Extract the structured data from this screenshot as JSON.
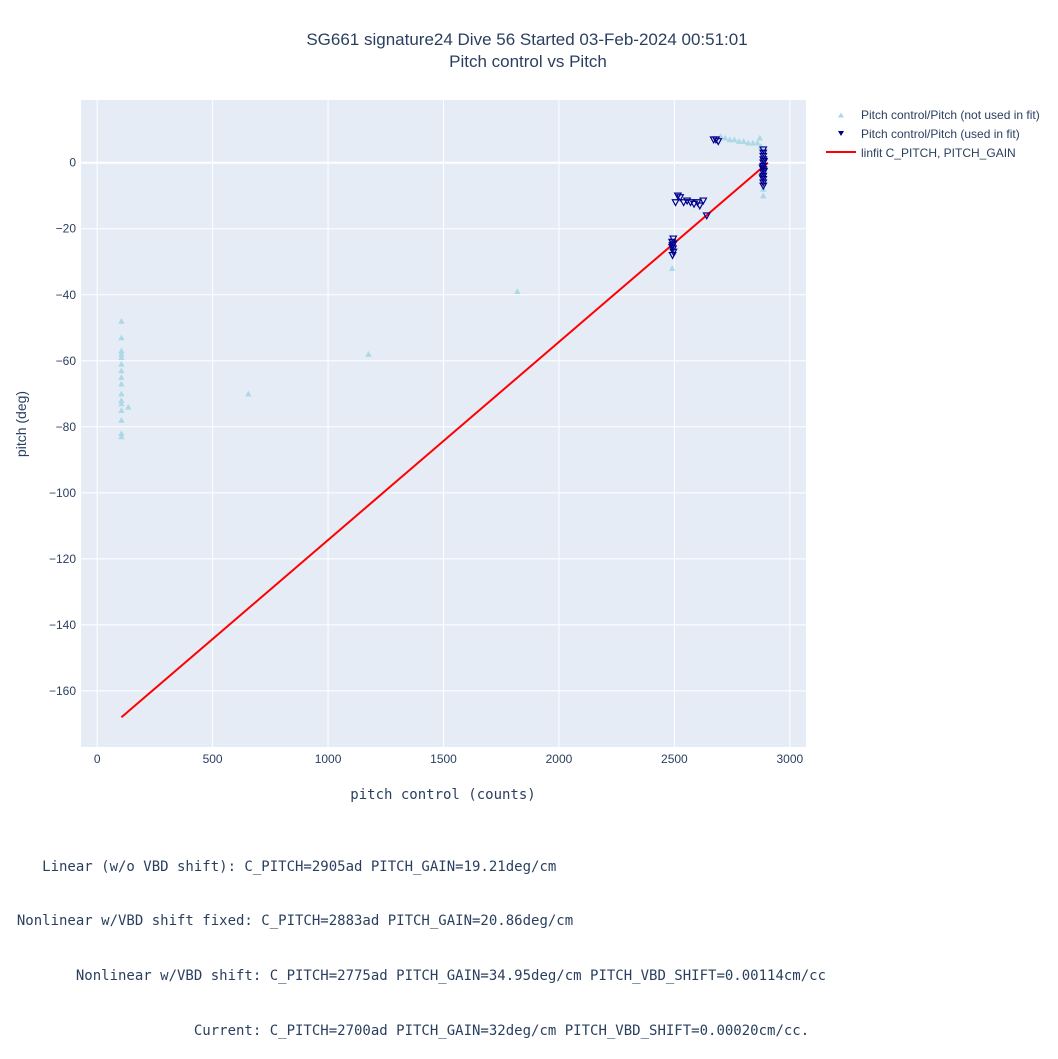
{
  "chart_data": {
    "type": "scatter",
    "title": "SG661 signature24 Dive 56 Started 03-Feb-2024 00:51:01",
    "subtitle": "Pitch control vs Pitch",
    "xlabel": "pitch control (counts)",
    "ylabel": "pitch (deg)",
    "xlim": [
      -70,
      3070
    ],
    "ylim": [
      -177,
      19
    ],
    "x_ticks": [
      0,
      500,
      1000,
      1500,
      2000,
      2500,
      3000
    ],
    "x_tick_labels": [
      "0",
      "500",
      "1000",
      "1500",
      "2000",
      "2500",
      "3000"
    ],
    "y_ticks": [
      0,
      -20,
      -40,
      -60,
      -80,
      -100,
      -120,
      -140,
      -160
    ],
    "y_tick_labels": [
      "0",
      "−20",
      "−40",
      "−60",
      "−80",
      "−100",
      "−120",
      "−140",
      "−160"
    ],
    "grid": true,
    "legend_position": "top-right outside",
    "series": [
      {
        "name": "Pitch control/Pitch (not used in fit)",
        "marker": "triangle-up",
        "color": "#add8e6",
        "points": [
          [
            105,
            -48
          ],
          [
            105,
            -53
          ],
          [
            105,
            -57
          ],
          [
            105,
            -58
          ],
          [
            105,
            -59
          ],
          [
            105,
            -61
          ],
          [
            105,
            -63
          ],
          [
            105,
            -65
          ],
          [
            105,
            -67
          ],
          [
            105,
            -70
          ],
          [
            105,
            -72
          ],
          [
            105,
            -73
          ],
          [
            105,
            -75
          ],
          [
            105,
            -78
          ],
          [
            105,
            -82
          ],
          [
            105,
            -83
          ],
          [
            135,
            -74
          ],
          [
            655,
            -70
          ],
          [
            1175,
            -58
          ],
          [
            1820,
            -39
          ],
          [
            2490,
            -32
          ],
          [
            2490,
            -24
          ],
          [
            2490,
            -26
          ],
          [
            2495,
            -27
          ],
          [
            2700,
            8
          ],
          [
            2720,
            7.5
          ],
          [
            2740,
            7
          ],
          [
            2760,
            7
          ],
          [
            2780,
            6.5
          ],
          [
            2800,
            6.5
          ],
          [
            2820,
            6
          ],
          [
            2840,
            6
          ],
          [
            2860,
            6
          ],
          [
            2870,
            7.5
          ],
          [
            2875,
            5
          ],
          [
            2880,
            4
          ],
          [
            2885,
            -10
          ],
          [
            2885,
            -8
          ],
          [
            2880,
            -3
          ]
        ]
      },
      {
        "name": "Pitch control/Pitch (used in fit)",
        "marker": "triangle-down",
        "color": "#00008b",
        "points": [
          [
            2490,
            -24
          ],
          [
            2492,
            -25
          ],
          [
            2494,
            -26
          ],
          [
            2496,
            -27
          ],
          [
            2492,
            -28
          ],
          [
            2495,
            -23
          ],
          [
            2490,
            -25.5
          ],
          [
            2496,
            -24.5
          ],
          [
            2505,
            -12
          ],
          [
            2515,
            -10
          ],
          [
            2525,
            -10.5
          ],
          [
            2540,
            -12
          ],
          [
            2555,
            -11.5
          ],
          [
            2570,
            -12
          ],
          [
            2585,
            -12.5
          ],
          [
            2600,
            -12
          ],
          [
            2610,
            -13
          ],
          [
            2625,
            -11.5
          ],
          [
            2640,
            -16
          ],
          [
            2670,
            7
          ],
          [
            2690,
            6.5
          ],
          [
            2680,
            7
          ],
          [
            2885,
            4
          ],
          [
            2885,
            3
          ],
          [
            2885,
            2
          ],
          [
            2885,
            1
          ],
          [
            2885,
            0
          ],
          [
            2885,
            -1
          ],
          [
            2885,
            -2
          ],
          [
            2885,
            -3
          ],
          [
            2885,
            -4
          ],
          [
            2885,
            -5
          ],
          [
            2885,
            -6
          ],
          [
            2885,
            -7
          ],
          [
            2882,
            -1.5
          ],
          [
            2888,
            -2.5
          ],
          [
            2882,
            -4.5
          ],
          [
            2888,
            0.5
          ]
        ]
      },
      {
        "name": "linfit C_PITCH, PITCH_GAIN",
        "type": "line",
        "color": "#ff0000",
        "points": [
          [
            105,
            -168
          ],
          [
            2905,
            0
          ]
        ]
      }
    ]
  },
  "notes": [
    "     Linear (w/o VBD shift): C_PITCH=2905ad PITCH_GAIN=19.21deg/cm",
    "  Nonlinear w/VBD shift fixed: C_PITCH=2883ad PITCH_GAIN=20.86deg/cm",
    "         Nonlinear w/VBD shift: C_PITCH=2775ad PITCH_GAIN=34.95deg/cm PITCH_VBD_SHIFT=0.00114cm/cc",
    "                       Current: C_PITCH=2700ad PITCH_GAIN=32deg/cm PITCH_VBD_SHIFT=0.00020cm/cc."
  ]
}
